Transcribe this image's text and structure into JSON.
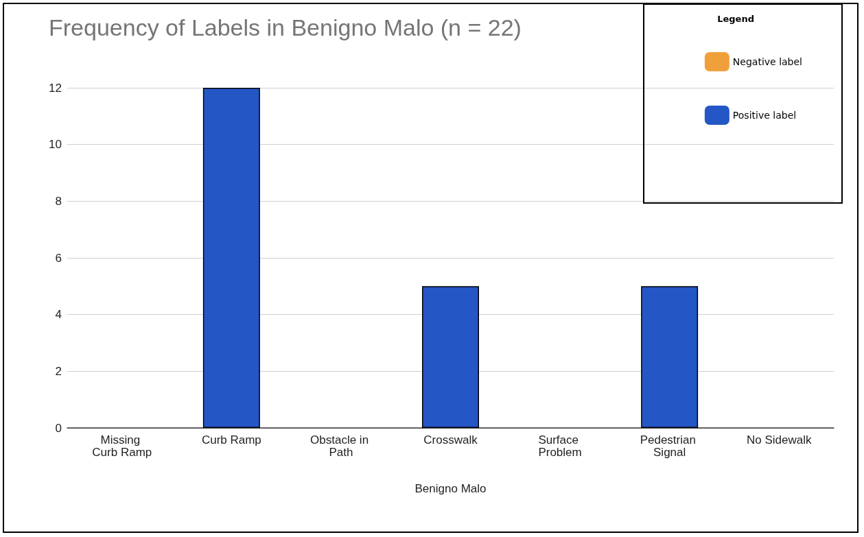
{
  "chart_data": {
    "type": "bar",
    "title": "Frequency of Labels in Benigno Malo (n = 22)",
    "xlabel": "Benigno Malo",
    "legend_title": "Legend",
    "categories": [
      "Missing Curb Ramp",
      "Curb Ramp",
      "Obstacle in Path",
      "Crosswalk",
      "Surface Problem",
      "Pedestrian Signal",
      "No Sidewalk"
    ],
    "series": [
      {
        "name": "Negative label",
        "color": "#f0a03a",
        "values": [
          0,
          null,
          0,
          null,
          0,
          null,
          0
        ]
      },
      {
        "name": "Positive label",
        "color": "#2457c5",
        "values": [
          null,
          12,
          null,
          5,
          null,
          5,
          null
        ]
      }
    ],
    "stacked": true,
    "ylim": [
      0,
      12
    ],
    "yticks": [
      0,
      2,
      4,
      6,
      8,
      10,
      12
    ],
    "grid": "y",
    "legend": "top right"
  }
}
